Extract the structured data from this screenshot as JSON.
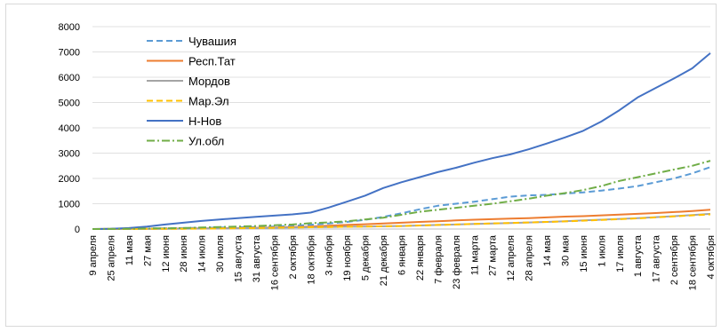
{
  "chart_data": {
    "type": "line",
    "title": "",
    "xlabel": "",
    "ylabel": "",
    "ylim": [
      0,
      8000
    ],
    "yticks": [
      0,
      1000,
      2000,
      3000,
      4000,
      5000,
      6000,
      7000,
      8000
    ],
    "grid": true,
    "legend_position": "top-left",
    "categories": [
      "9 апреля",
      "25 апреля",
      "11 мая",
      "27 мая",
      "12 июня",
      "28 июня",
      "14 июля",
      "30 июля",
      "15 августа",
      "31 августа",
      "16 сентября",
      "2 октября",
      "18 октября",
      "3 ноября",
      "19 ноября",
      "5 декабря",
      "21 декабря",
      "6 января",
      "22 января",
      "7 февраля",
      "23 февраля",
      "11 марта",
      "27 марта",
      "12 апреля",
      "28 апреля",
      "14 мая",
      "30 мая",
      "15 июня",
      "1 июля",
      "17 июля",
      "1 августа",
      "17 августа",
      "2 сентября",
      "18 сентября",
      "4 октября"
    ],
    "series": [
      {
        "name": "Чувашия",
        "color": "#5b9bd5",
        "dash": "dash",
        "values": [
          0,
          5,
          10,
          20,
          30,
          40,
          50,
          60,
          70,
          80,
          100,
          130,
          170,
          220,
          280,
          360,
          480,
          620,
          780,
          920,
          1000,
          1080,
          1180,
          1280,
          1330,
          1350,
          1400,
          1450,
          1520,
          1600,
          1700,
          1850,
          2000,
          2200,
          2450
        ]
      },
      {
        "name": "Респ.Тат",
        "color": "#ed7d31",
        "dash": "solid",
        "values": [
          0,
          2,
          5,
          10,
          15,
          20,
          25,
          30,
          40,
          50,
          60,
          80,
          100,
          130,
          160,
          190,
          220,
          250,
          280,
          310,
          340,
          370,
          390,
          410,
          430,
          460,
          490,
          510,
          540,
          570,
          600,
          630,
          670,
          710,
          760
        ]
      },
      {
        "name": "Мордов",
        "color": "#a5a5a5",
        "dash": "solid",
        "values": [
          0,
          2,
          5,
          8,
          10,
          15,
          20,
          25,
          30,
          40,
          50,
          60,
          70,
          80,
          90,
          100,
          110,
          120,
          140,
          160,
          180,
          200,
          220,
          240,
          260,
          280,
          310,
          340,
          370,
          400,
          430,
          470,
          510,
          550,
          600
        ]
      },
      {
        "name": "Мар.Эл",
        "color": "#ffc000",
        "dash": "dash",
        "values": [
          0,
          2,
          4,
          6,
          8,
          10,
          15,
          20,
          30,
          40,
          50,
          60,
          70,
          80,
          90,
          100,
          110,
          120,
          140,
          160,
          180,
          200,
          220,
          240,
          260,
          280,
          300,
          330,
          360,
          390,
          420,
          460,
          500,
          540,
          580
        ]
      },
      {
        "name": "Н-Нов",
        "color": "#4472c4",
        "dash": "solid",
        "values": [
          0,
          10,
          40,
          100,
          180,
          250,
          320,
          380,
          430,
          480,
          530,
          580,
          650,
          850,
          1080,
          1320,
          1620,
          1850,
          2050,
          2250,
          2420,
          2620,
          2800,
          2950,
          3150,
          3380,
          3620,
          3880,
          4250,
          4700,
          5200,
          5580,
          5950,
          6350,
          6950
        ]
      },
      {
        "name": "Ул.обл",
        "color": "#70ad47",
        "dash": "dashdot",
        "values": [
          0,
          5,
          10,
          20,
          30,
          40,
          60,
          80,
          100,
          120,
          150,
          180,
          230,
          260,
          310,
          380,
          450,
          560,
          680,
          760,
          840,
          920,
          1000,
          1100,
          1200,
          1320,
          1420,
          1540,
          1700,
          1900,
          2050,
          2200,
          2350,
          2500,
          2700
        ]
      }
    ]
  }
}
